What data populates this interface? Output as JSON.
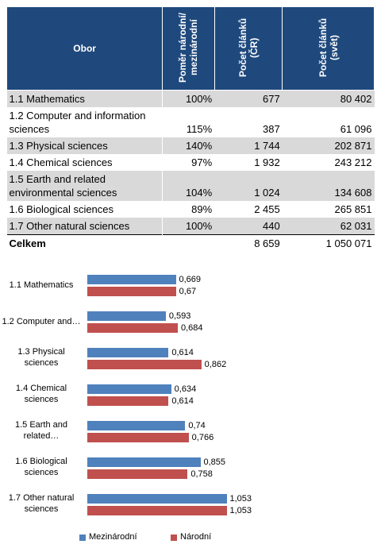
{
  "table": {
    "header": [
      "Obor",
      "Poměr národní/ mezinárodní",
      "Počet článků (ČR)",
      "Počet článků (svět)"
    ],
    "rows": [
      [
        "1.1 Mathematics",
        "100%",
        "677",
        "80 402"
      ],
      [
        "1.2 Computer and information sciences",
        "115%",
        "387",
        "61 096"
      ],
      [
        "1.3 Physical sciences",
        "140%",
        "1 744",
        "202 871"
      ],
      [
        "1.4 Chemical sciences",
        "97%",
        "1 932",
        "243 212"
      ],
      [
        "1.5 Earth and related environmental sciences",
        "104%",
        "1 024",
        "134 608"
      ],
      [
        "1.6 Biological sciences",
        "89%",
        "2 455",
        "265 851"
      ],
      [
        "1.7 Other natural sciences",
        "100%",
        "440",
        "62 031"
      ]
    ],
    "total": {
      "label": "Celkem",
      "cr": "8 659",
      "svet": "1 050 071"
    }
  },
  "chart_data": {
    "type": "bar",
    "orientation": "horizontal",
    "categories": [
      "1.1 Mathematics",
      "1.2 Computer and…",
      "1.3 Physical sciences",
      "1.4 Chemical sciences",
      "1.5 Earth and related…",
      "1.6 Biological sciences",
      "1.7 Other natural sciences"
    ],
    "xlim": [
      0,
      1.2
    ],
    "series": [
      {
        "name": "Mezinárodní",
        "color": "#4f81bd",
        "values": [
          0.669,
          0.593,
          0.614,
          0.634,
          0.74,
          0.855,
          1.053
        ],
        "value_labels": [
          "0,669",
          "0,593",
          "0,614",
          "0,634",
          "0,74",
          "0,855",
          "1,053"
        ]
      },
      {
        "name": "Národní",
        "color": "#c0504d",
        "values": [
          0.67,
          0.684,
          0.862,
          0.614,
          0.766,
          0.758,
          1.053
        ],
        "value_labels": [
          "0,67",
          "0,684",
          "0,862",
          "0,614",
          "0,766",
          "0,758",
          "1,053"
        ]
      }
    ],
    "legend": "bottom"
  }
}
